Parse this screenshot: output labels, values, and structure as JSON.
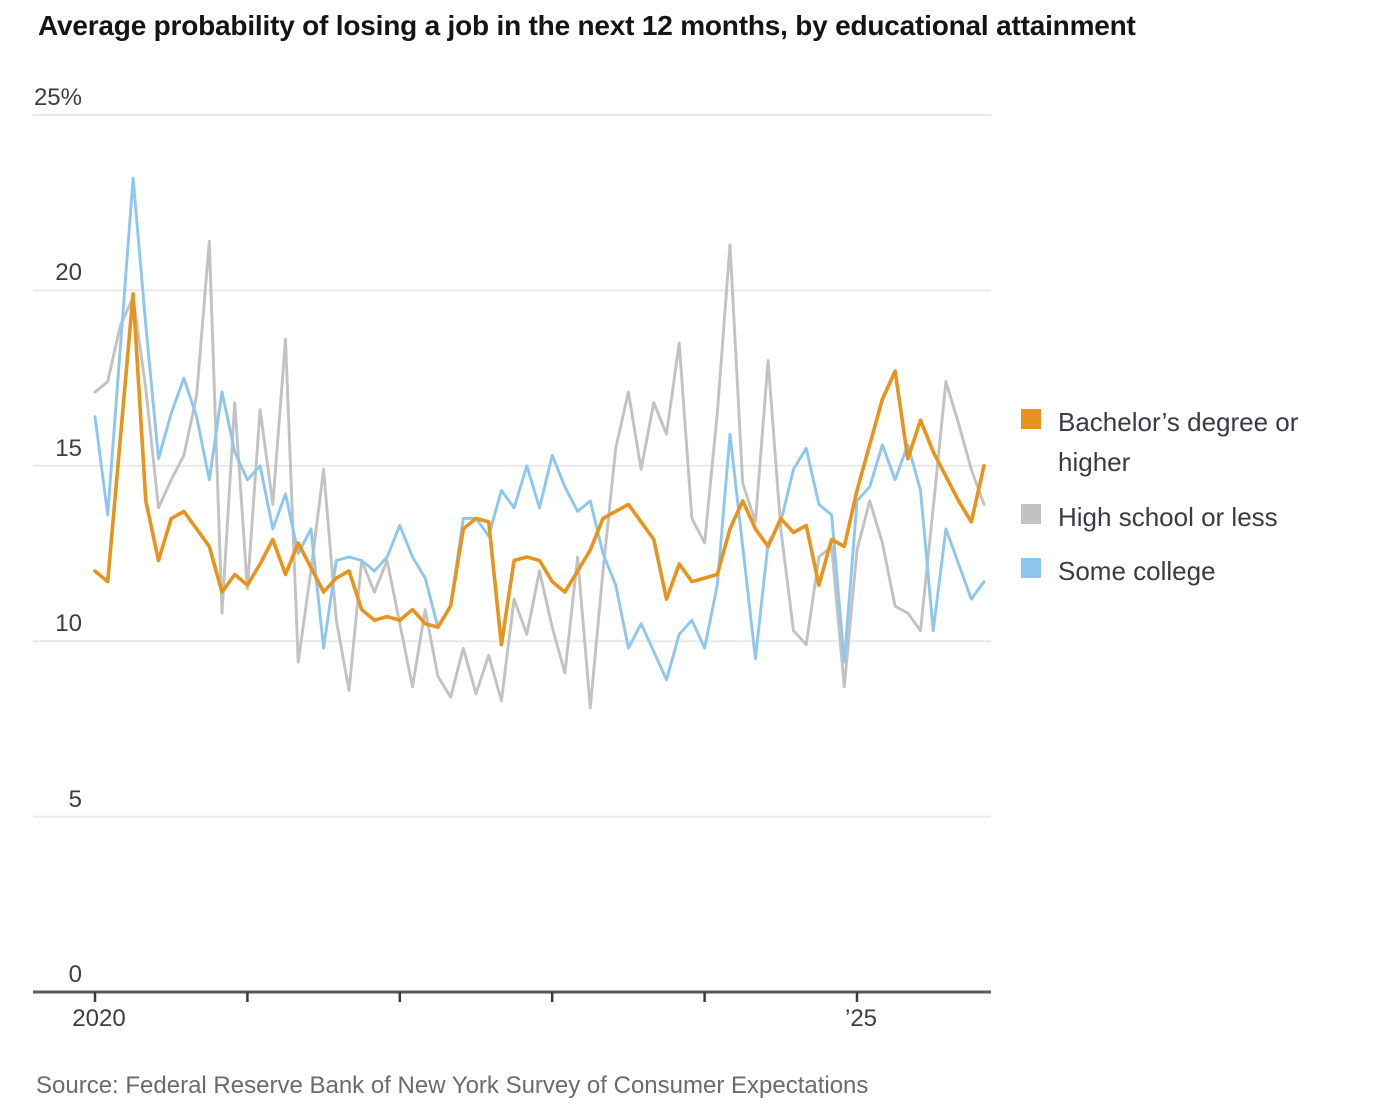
{
  "title": "Average probability of losing a job in the next 12 months, by educational attainment",
  "source": "Source: Federal Reserve Bank of New York Survey of Consumer Expectations",
  "chart_data": {
    "type": "line",
    "title": "Average probability of losing a job in the next 12 months, by educational attainment",
    "x_start": "2020-01",
    "x_end": "2025-11",
    "x_frequency": "monthly",
    "ylim": [
      0,
      25
    ],
    "grid": "horizontal",
    "legend_position": "right",
    "y_ticks": [
      0,
      5,
      10,
      15,
      20,
      25
    ],
    "y_tick_labels": [
      "0",
      "5",
      "10",
      "15",
      "20",
      "25%"
    ],
    "x_ticks": [
      {
        "month_index": 0,
        "label": "2020"
      },
      {
        "month_index": 12,
        "label": ""
      },
      {
        "month_index": 24,
        "label": ""
      },
      {
        "month_index": 36,
        "label": ""
      },
      {
        "month_index": 48,
        "label": ""
      },
      {
        "month_index": 60,
        "label": "’25"
      }
    ],
    "series": [
      {
        "name": "Bachelor’s degree or higher",
        "color": "#E8941C",
        "values": [
          12.0,
          11.7,
          15.8,
          19.9,
          14.0,
          12.3,
          13.5,
          13.7,
          13.2,
          12.7,
          11.4,
          11.9,
          11.6,
          12.2,
          12.9,
          11.9,
          12.8,
          12.1,
          11.4,
          11.8,
          12.0,
          10.9,
          10.6,
          10.7,
          10.6,
          10.9,
          10.5,
          10.4,
          11.0,
          13.2,
          13.5,
          13.4,
          9.9,
          12.3,
          12.4,
          12.3,
          11.7,
          11.4,
          12.0,
          12.6,
          13.5,
          13.7,
          13.9,
          13.4,
          12.9,
          11.2,
          12.2,
          11.7,
          11.8,
          11.9,
          13.2,
          14.0,
          13.2,
          12.7,
          13.5,
          13.1,
          13.3,
          11.6,
          12.9,
          12.7,
          14.3,
          15.6,
          16.9,
          17.7,
          15.2,
          16.3,
          15.4,
          14.7,
          14.0,
          13.4,
          15.0
        ]
      },
      {
        "name": "High school or less",
        "color": "#C2C2C2",
        "values": [
          17.1,
          17.4,
          19.0,
          19.8,
          17.2,
          13.8,
          14.6,
          15.3,
          17.0,
          21.4,
          10.8,
          16.8,
          11.5,
          16.6,
          13.9,
          18.6,
          9.4,
          12.0,
          14.9,
          10.6,
          8.6,
          12.3,
          11.4,
          12.3,
          10.5,
          8.7,
          10.9,
          9.0,
          8.4,
          9.8,
          8.5,
          9.6,
          8.3,
          11.2,
          10.2,
          12.0,
          10.4,
          9.1,
          12.4,
          8.1,
          12.0,
          15.5,
          17.1,
          14.9,
          16.8,
          15.9,
          18.5,
          13.5,
          12.8,
          16.5,
          21.3,
          14.5,
          13.4,
          18.0,
          13.2,
          10.3,
          9.9,
          12.4,
          12.7,
          8.7,
          12.6,
          14.0,
          12.8,
          11.0,
          10.8,
          10.3,
          13.8,
          17.4,
          16.2,
          14.9,
          13.9
        ]
      },
      {
        "name": "Some college",
        "color": "#8EC7ED",
        "values": [
          16.4,
          13.6,
          18.4,
          23.2,
          19.0,
          15.2,
          16.5,
          17.5,
          16.4,
          14.6,
          17.1,
          15.4,
          14.6,
          15.0,
          13.2,
          14.2,
          12.5,
          13.2,
          9.8,
          12.3,
          12.4,
          12.3,
          12.0,
          12.4,
          13.3,
          12.4,
          11.8,
          10.4,
          11.0,
          13.5,
          13.5,
          13.0,
          14.3,
          13.8,
          15.0,
          13.8,
          15.3,
          14.4,
          13.7,
          14.0,
          12.5,
          11.6,
          9.8,
          10.5,
          9.7,
          8.9,
          10.2,
          10.6,
          9.8,
          11.6,
          15.9,
          12.7,
          9.5,
          12.8,
          13.4,
          14.9,
          15.5,
          13.9,
          13.6,
          9.4,
          14.0,
          14.4,
          15.6,
          14.6,
          15.6,
          14.3,
          10.3,
          13.2,
          12.2,
          11.2,
          11.7
        ]
      }
    ]
  }
}
